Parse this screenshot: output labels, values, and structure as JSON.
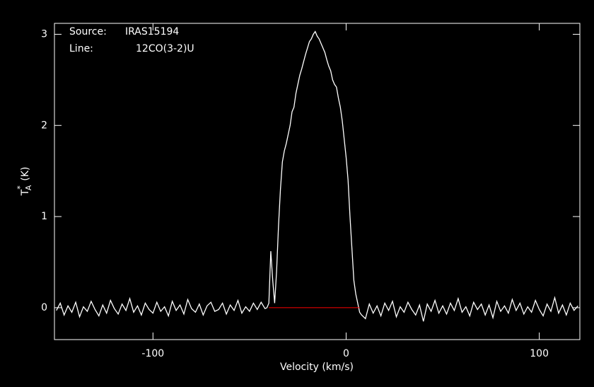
{
  "chart_data": {
    "type": "line",
    "xlabel": "Velocity (km/s)",
    "ylabel": {
      "symbol": "T",
      "sup": "*",
      "sub": "A",
      "unit": "(K)"
    },
    "annotations": [
      {
        "label": "Source:",
        "text": "IRAS15194"
      },
      {
        "label": "Line:",
        "text": "12CO(3-2)U"
      }
    ],
    "color": "#ffffff",
    "baseline": {
      "x": [
        -40,
        7
      ],
      "y": 0,
      "color": "#ff0000"
    },
    "xlim": [
      -151,
      121
    ],
    "ylim": [
      -0.35,
      3.12
    ],
    "xticks": [
      -100,
      0,
      100
    ],
    "yticks": [
      0,
      1,
      2,
      3
    ],
    "x": [
      -150,
      -148,
      -146,
      -144,
      -142,
      -140,
      -138,
      -136,
      -134,
      -132,
      -130,
      -128,
      -126,
      -124,
      -122,
      -120,
      -118,
      -116,
      -114,
      -112,
      -110,
      -108,
      -106,
      -104,
      -102,
      -100,
      -98,
      -96,
      -94,
      -92,
      -90,
      -88,
      -86,
      -84,
      -82,
      -80,
      -78,
      -76,
      -74,
      -72,
      -70,
      -68,
      -66,
      -64,
      -62,
      -60,
      -58,
      -56,
      -54,
      -52,
      -50,
      -48,
      -46,
      -44,
      -42,
      -41,
      -40,
      -39,
      -38,
      -37,
      -36,
      -35,
      -34,
      -33,
      -32,
      -31,
      -30,
      -29,
      -28,
      -27,
      -26,
      -25,
      -24,
      -23,
      -22,
      -21,
      -20,
      -19,
      -18,
      -17,
      -16,
      -15,
      -14,
      -13,
      -12,
      -11,
      -10,
      -9,
      -8,
      -7,
      -6,
      -5,
      -4,
      -3,
      -2,
      -1,
      0,
      1,
      2,
      3,
      4,
      5,
      6,
      7,
      8,
      10,
      12,
      14,
      16,
      18,
      20,
      22,
      24,
      26,
      28,
      30,
      32,
      34,
      36,
      38,
      40,
      42,
      44,
      46,
      48,
      50,
      52,
      54,
      56,
      58,
      60,
      62,
      64,
      66,
      68,
      70,
      72,
      74,
      76,
      78,
      80,
      82,
      84,
      86,
      88,
      90,
      92,
      94,
      96,
      98,
      100,
      102,
      104,
      106,
      108,
      110,
      112,
      114,
      116,
      118,
      120
    ],
    "values": [
      -0.03,
      0.05,
      -0.08,
      0.02,
      -0.05,
      0.06,
      -0.1,
      0.01,
      -0.04,
      0.07,
      -0.02,
      -0.09,
      0.03,
      -0.06,
      0.08,
      -0.01,
      -0.07,
      0.04,
      -0.03,
      0.1,
      -0.05,
      0.02,
      -0.08,
      0.05,
      -0.02,
      -0.06,
      0.06,
      -0.04,
      0.01,
      -0.09,
      0.07,
      -0.03,
      0.03,
      -0.07,
      0.09,
      -0.01,
      -0.05,
      0.04,
      -0.08,
      0.02,
      0.06,
      -0.04,
      -0.02,
      0.05,
      -0.07,
      0.03,
      -0.03,
      0.08,
      -0.06,
      0.01,
      -0.04,
      0.05,
      -0.02,
      0.06,
      -0.01,
      0.0,
      0.05,
      0.62,
      0.3,
      0.05,
      0.4,
      0.9,
      1.3,
      1.6,
      1.72,
      1.8,
      1.9,
      2.0,
      2.15,
      2.2,
      2.35,
      2.45,
      2.55,
      2.62,
      2.7,
      2.78,
      2.85,
      2.92,
      2.95,
      3.0,
      3.03,
      2.98,
      2.95,
      2.9,
      2.85,
      2.8,
      2.72,
      2.65,
      2.6,
      2.5,
      2.45,
      2.42,
      2.3,
      2.2,
      2.05,
      1.85,
      1.65,
      1.4,
      1.0,
      0.65,
      0.3,
      0.15,
      0.05,
      -0.05,
      -0.08,
      -0.12,
      0.04,
      -0.06,
      0.02,
      -0.09,
      0.05,
      -0.03,
      0.07,
      -0.1,
      0.01,
      -0.05,
      0.06,
      -0.02,
      -0.08,
      0.03,
      -0.15,
      0.04,
      -0.04,
      0.08,
      -0.06,
      0.02,
      -0.07,
      0.05,
      -0.03,
      0.1,
      -0.05,
      0.01,
      -0.09,
      0.06,
      -0.02,
      0.04,
      -0.08,
      0.03,
      -0.11,
      0.07,
      -0.04,
      0.02,
      -0.06,
      0.09,
      -0.03,
      0.05,
      -0.07,
      0.01,
      -0.05,
      0.08,
      -0.02,
      -0.09,
      0.04,
      -0.04,
      0.11,
      -0.06,
      0.03,
      -0.08,
      0.05,
      -0.03,
      0.02
    ]
  }
}
